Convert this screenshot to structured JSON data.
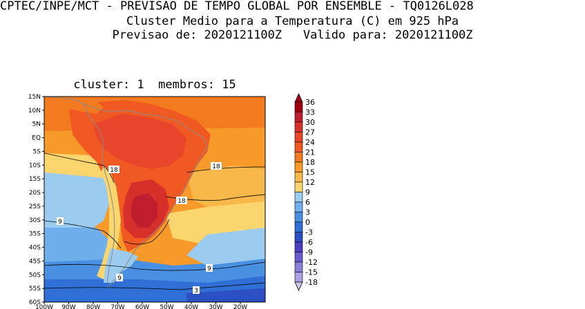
{
  "header": {
    "line1": "CPTEC/INPE/MCT - PREVISAO DE TEMPO GLOBAL POR ENSEMBLE - TQ0126L028",
    "line2": "Cluster Medio para a Temperatura (C) em 925 hPa",
    "line3": "Previsao de: 2020121100Z   Valido para: 2020121100Z"
  },
  "plot": {
    "title": "cluster: 1  membros: 15"
  },
  "map": {
    "lat_ticks": [
      "15N",
      "10N",
      "5N",
      "EQ",
      "5S",
      "10S",
      "15S",
      "20S",
      "25S",
      "30S",
      "35S",
      "40S",
      "45S",
      "50S",
      "55S",
      "60S"
    ],
    "lon_ticks": [
      "100W",
      "90W",
      "80W",
      "70W",
      "60W",
      "50W",
      "40W",
      "30W",
      "20W"
    ],
    "contour_labels": [
      {
        "text": "18",
        "zone": "central-andes"
      },
      {
        "text": "18",
        "zone": "east-atlantic"
      },
      {
        "text": "18",
        "zone": "south-brazil-coast"
      },
      {
        "text": "9",
        "zone": "west-pacific"
      },
      {
        "text": "9",
        "zone": "south-atlantic"
      },
      {
        "text": "9",
        "zone": "patagonia"
      },
      {
        "text": "3",
        "zone": "drake-passage"
      }
    ]
  },
  "colorbar": {
    "labels": [
      "36",
      "33",
      "30",
      "27",
      "24",
      "21",
      "18",
      "15",
      "12",
      "9",
      "6",
      "3",
      "0",
      "-3",
      "-6",
      "-9",
      "-12",
      "-15",
      "-18"
    ],
    "colors": [
      "#a00010",
      "#be1e2d",
      "#d7302a",
      "#e8452a",
      "#f05a22",
      "#f47a20",
      "#f79a2a",
      "#f9b84a",
      "#fbd56e",
      "#9ccbf0",
      "#6fb0ec",
      "#4a90e2",
      "#2f6fd6",
      "#2c4fc4",
      "#4a3fc0",
      "#6a5ccc",
      "#8a7fd6",
      "#aaa2e0",
      "#cbc6ec"
    ]
  }
}
